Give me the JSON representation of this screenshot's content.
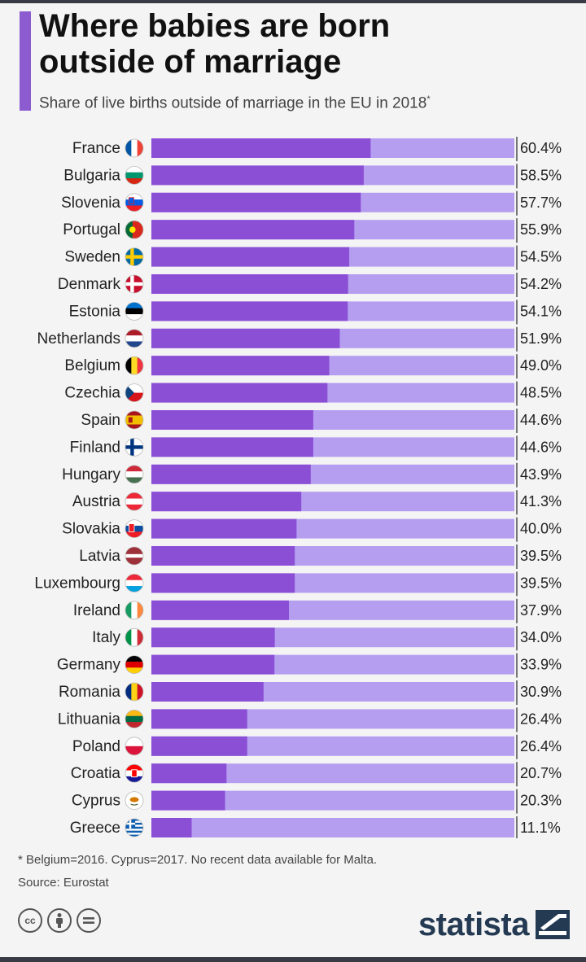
{
  "header": {
    "title_line1": "Where babies are born",
    "title_line2": "outside of marriage",
    "subtitle": "Share of live births outside of marriage in the EU in 2018",
    "subtitle_mark": "*"
  },
  "colors": {
    "accent": "#8c5bd0",
    "bar": "#8b4fd6",
    "bar_track": "#b59ef0",
    "brand": "#243a52"
  },
  "chart_data": {
    "type": "bar",
    "orientation": "horizontal",
    "title": "Where babies are born outside of marriage",
    "subtitle": "Share of live births outside of marriage in the EU in 2018*",
    "xlabel": "",
    "ylabel": "",
    "xlim": [
      0,
      100
    ],
    "unit": "%",
    "categories": [
      "France",
      "Bulgaria",
      "Slovenia",
      "Portugal",
      "Sweden",
      "Denmark",
      "Estonia",
      "Netherlands",
      "Belgium",
      "Czechia",
      "Spain",
      "Finland",
      "Hungary",
      "Austria",
      "Slovakia",
      "Latvia",
      "Luxembourg",
      "Ireland",
      "Italy",
      "Germany",
      "Romania",
      "Lithuania",
      "Poland",
      "Croatia",
      "Cyprus",
      "Greece"
    ],
    "values": [
      60.4,
      58.5,
      57.7,
      55.9,
      54.5,
      54.2,
      54.1,
      51.9,
      49.0,
      48.5,
      44.6,
      44.6,
      43.9,
      41.3,
      40.0,
      39.5,
      39.5,
      37.9,
      34.0,
      33.9,
      30.9,
      26.4,
      26.4,
      20.7,
      20.3,
      11.1
    ],
    "labels": [
      "60.4%",
      "58.5%",
      "57.7%",
      "55.9%",
      "54.5%",
      "54.2%",
      "54.1%",
      "51.9%",
      "49.0%",
      "48.5%",
      "44.6%",
      "44.6%",
      "43.9%",
      "41.3%",
      "40.0%",
      "39.5%",
      "39.5%",
      "37.9%",
      "34.0%",
      "33.9%",
      "30.9%",
      "26.4%",
      "26.4%",
      "20.7%",
      "20.3%",
      "11.1%"
    ],
    "flag_icons": [
      "france-flag-icon",
      "bulgaria-flag-icon",
      "slovenia-flag-icon",
      "portugal-flag-icon",
      "sweden-flag-icon",
      "denmark-flag-icon",
      "estonia-flag-icon",
      "netherlands-flag-icon",
      "belgium-flag-icon",
      "czechia-flag-icon",
      "spain-flag-icon",
      "finland-flag-icon",
      "hungary-flag-icon",
      "austria-flag-icon",
      "slovakia-flag-icon",
      "latvia-flag-icon",
      "luxembourg-flag-icon",
      "ireland-flag-icon",
      "italy-flag-icon",
      "germany-flag-icon",
      "romania-flag-icon",
      "lithuania-flag-icon",
      "poland-flag-icon",
      "croatia-flag-icon",
      "cyprus-flag-icon",
      "greece-flag-icon"
    ]
  },
  "footer": {
    "footnote": "* Belgium=2016. Cyprus=2017. No recent data available for Malta.",
    "source": "Source: Eurostat",
    "license_icons": [
      "cc-icon",
      "attribution-icon",
      "no-derivatives-icon"
    ],
    "brand": "statista",
    "brand_icon": "statista-logo-icon"
  }
}
